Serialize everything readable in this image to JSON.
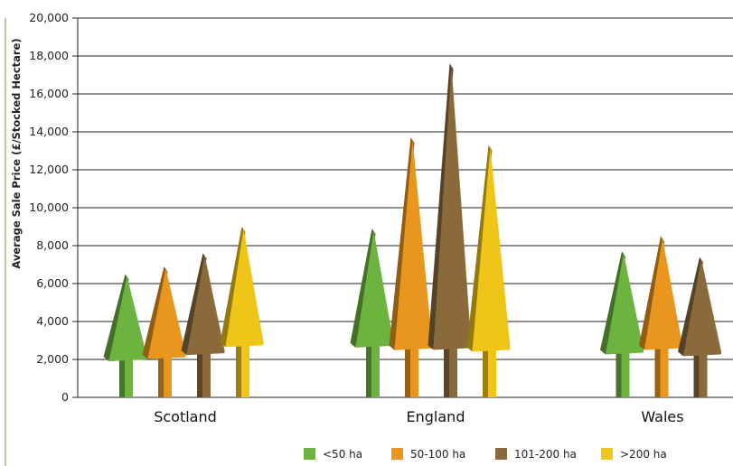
{
  "chart_data": {
    "type": "bar",
    "title": "",
    "xlabel": "",
    "ylabel": "Average Sale Price (£/Stocked Hectare)",
    "ylim": [
      0,
      20000
    ],
    "yticks": [
      0,
      2000,
      4000,
      6000,
      8000,
      10000,
      12000,
      14000,
      16000,
      18000,
      20000
    ],
    "ytick_labels": [
      "0",
      "2,000",
      "4,000",
      "6,000",
      "8,000",
      "10,000",
      "12,000",
      "14,000",
      "16,000",
      "18,000",
      "20,000"
    ],
    "grid": true,
    "legend_position": "bottom",
    "categories": [
      "Scotland",
      "England",
      "Wales"
    ],
    "series": [
      {
        "name": "<50 ha",
        "color": "#6db33f",
        "values": [
          6500,
          8900,
          7700
        ]
      },
      {
        "name": "50-100 ha",
        "color": "#e8961e",
        "values": [
          6900,
          13700,
          8500
        ]
      },
      {
        "name": "101-200 ha",
        "color": "#8a6a3a",
        "values": [
          7600,
          17600,
          7400
        ]
      },
      {
        "name": ">200 ha",
        "color": "#efc517",
        "values": [
          9000,
          13300,
          null
        ]
      }
    ]
  }
}
